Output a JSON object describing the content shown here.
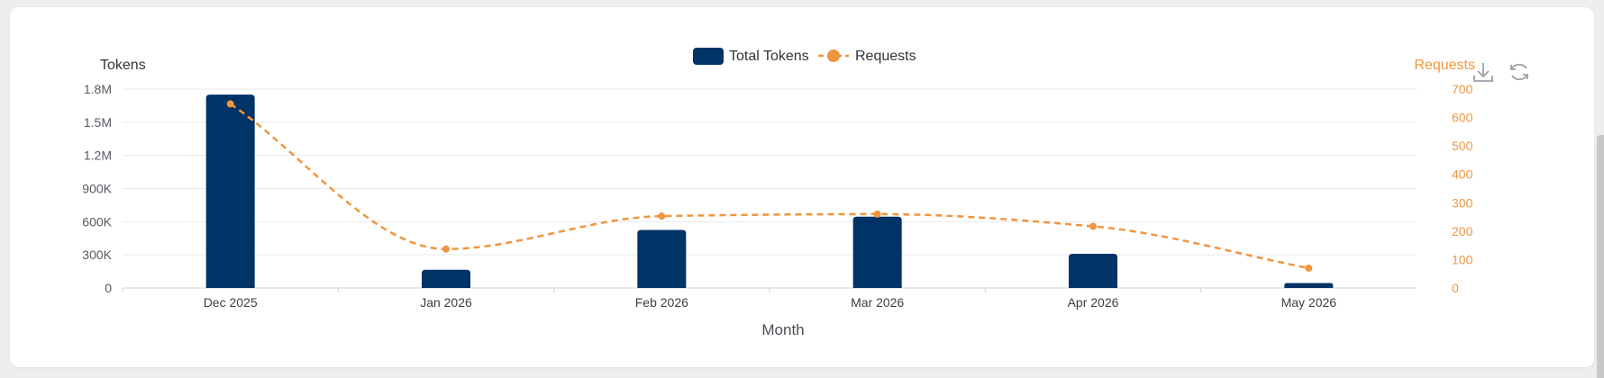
{
  "chart_data": {
    "type": "bar",
    "categories": [
      "Dec 2025",
      "Jan 2026",
      "Feb 2026",
      "Mar 2026",
      "Apr 2026",
      "May 2026"
    ],
    "series": [
      {
        "name": "Total Tokens",
        "type": "bar",
        "axis": "left",
        "color": "#003366",
        "values": [
          1750000,
          165000,
          525000,
          645000,
          310000,
          45000
        ]
      },
      {
        "name": "Requests",
        "type": "line",
        "axis": "right",
        "color": "#f0953f",
        "smooth": true,
        "dashed": true,
        "values": [
          648,
          137,
          253,
          260,
          217,
          70
        ]
      }
    ],
    "xlabel": "Month",
    "ylabel_left": "Tokens",
    "ylabel_right": "Requests",
    "ylim_left": [
      0,
      1800000
    ],
    "yticks_left": [
      "0",
      "300K",
      "600K",
      "900K",
      "1.2M",
      "1.5M",
      "1.8M"
    ],
    "ylim_right": [
      0,
      700
    ],
    "yticks_right": [
      "0",
      "100",
      "200",
      "300",
      "400",
      "500",
      "600",
      "700"
    ],
    "grid": true,
    "legend": "top-center"
  },
  "toolbox": {
    "download_icon": "download-icon",
    "refresh_icon": "refresh-icon"
  }
}
